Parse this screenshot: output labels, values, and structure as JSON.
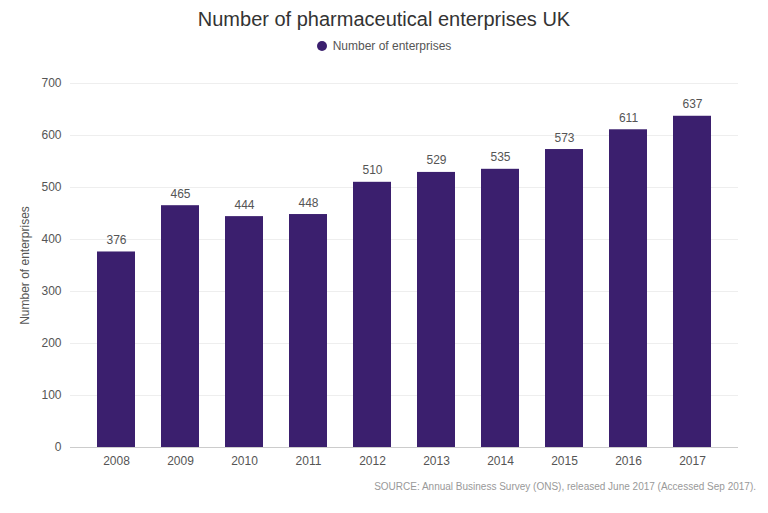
{
  "chart_data": {
    "type": "bar",
    "title": "Number of pharmaceutical enterprises UK",
    "ylabel": "Number of enterprises",
    "categories": [
      "2008",
      "2009",
      "2010",
      "2011",
      "2012",
      "2013",
      "2014",
      "2015",
      "2016",
      "2017"
    ],
    "series": [
      {
        "name": "Number of enterprises",
        "color": "#3b1f6e",
        "values": [
          376,
          465,
          444,
          448,
          510,
          529,
          535,
          573,
          611,
          637
        ]
      }
    ],
    "ylim": [
      0,
      700
    ],
    "yticks": [
      0,
      100,
      200,
      300,
      400,
      500,
      600,
      700
    ],
    "grid": true,
    "legend": "top",
    "data_labels": true,
    "annotations": [
      "SOURCE: Annual Business Survey (ONS), released June 2017 (Accessed Sep 2017)."
    ]
  }
}
